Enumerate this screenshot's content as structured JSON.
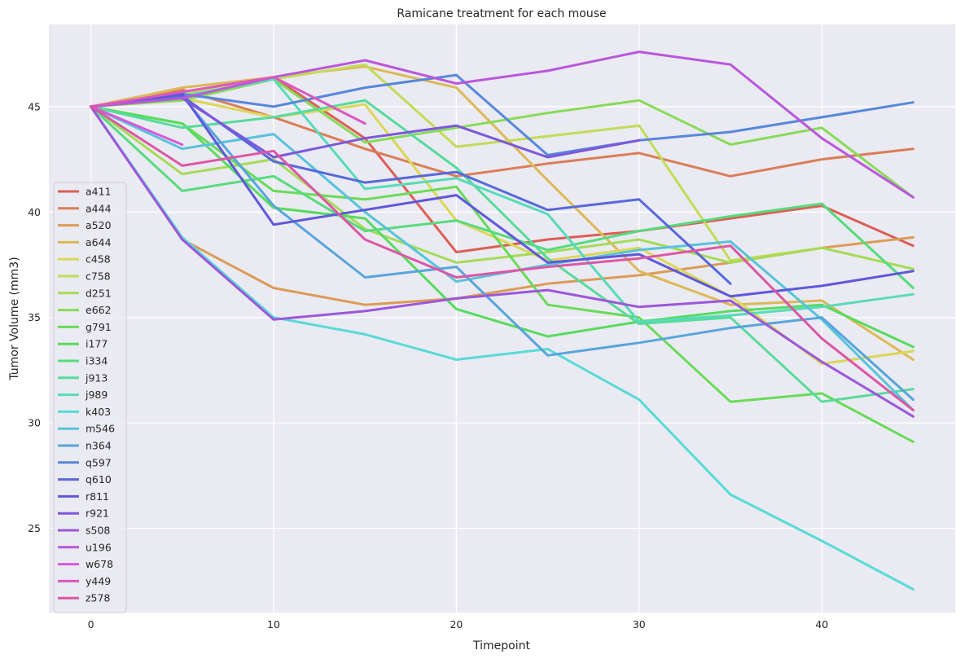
{
  "chart_data": {
    "type": "line",
    "title": "Ramicane treatment for each mouse",
    "xlabel": "Timepoint",
    "ylabel": "Tumor Volume (mm3)",
    "xlim": [
      -2.3,
      47.3
    ],
    "ylim": [
      21.0,
      48.9
    ],
    "xticks": [
      0,
      10,
      20,
      30,
      40
    ],
    "yticks": [
      25,
      30,
      35,
      40,
      45
    ],
    "grid": true,
    "legend_position": "center-left",
    "series": [
      {
        "name": "a411",
        "color": "#db5f57",
        "x": [
          0,
          5,
          10,
          15,
          20,
          25,
          30,
          35,
          40,
          45
        ],
        "y": [
          45.0,
          45.5,
          46.4,
          43.5,
          38.1,
          38.7,
          39.1,
          39.7,
          40.3,
          38.4
        ]
      },
      {
        "name": "a444",
        "color": "#db7d57",
        "x": [
          0,
          5,
          10,
          15,
          20,
          25,
          30,
          35,
          40,
          45
        ],
        "y": [
          45.0,
          45.8,
          44.5,
          43.0,
          41.7,
          42.3,
          42.8,
          41.7,
          42.5,
          43.0
        ]
      },
      {
        "name": "a520",
        "color": "#db9b57",
        "x": [
          0,
          5,
          10,
          15,
          20,
          25,
          30,
          35,
          40,
          45
        ],
        "y": [
          45.0,
          38.7,
          36.4,
          35.6,
          35.9,
          36.6,
          37.0,
          37.6,
          38.3,
          38.8
        ]
      },
      {
        "name": "a644",
        "color": "#dbb957",
        "x": [
          0,
          5,
          10,
          15,
          20,
          25,
          30,
          35,
          40,
          45
        ],
        "y": [
          45.0,
          45.9,
          46.4,
          46.9,
          45.9,
          41.5,
          37.2,
          35.6,
          35.8,
          33.0
        ]
      },
      {
        "name": "c458",
        "color": "#dbd757",
        "x": [
          0,
          5,
          10,
          15,
          20,
          25,
          30,
          35,
          40,
          45
        ],
        "y": [
          45.0,
          45.4,
          44.5,
          45.1,
          39.6,
          37.7,
          38.3,
          36.0,
          32.8,
          33.4
        ]
      },
      {
        "name": "c758",
        "color": "#c3db57",
        "x": [
          0,
          5,
          10,
          15,
          20,
          25,
          30,
          35,
          40,
          45
        ],
        "y": [
          45.0,
          45.6,
          46.3,
          47.0,
          43.1,
          43.6,
          44.1,
          37.7,
          38.3,
          37.3
        ]
      },
      {
        "name": "d251",
        "color": "#a5db57",
        "x": [
          0,
          5,
          10,
          15,
          20,
          25,
          30,
          35,
          40,
          45
        ],
        "y": [
          45.0,
          41.8,
          42.5,
          39.2,
          37.6,
          38.1,
          38.7,
          37.6,
          38.3,
          37.3
        ]
      },
      {
        "name": "e662",
        "color": "#87db57",
        "x": [
          0,
          5,
          10,
          15,
          20,
          25,
          30,
          35,
          40,
          45
        ],
        "y": [
          45.0,
          45.3,
          46.3,
          43.3,
          44.0,
          44.7,
          45.3,
          43.2,
          44.0,
          40.7
        ]
      },
      {
        "name": "g791",
        "color": "#69db57",
        "x": [
          0,
          5,
          10,
          15,
          20,
          25,
          30,
          35,
          40,
          45
        ],
        "y": [
          45.0,
          44.2,
          41.0,
          40.6,
          41.2,
          35.6,
          35.0,
          31.0,
          31.4,
          29.1
        ]
      },
      {
        "name": "i177",
        "color": "#57db5f",
        "x": [
          0,
          5,
          10,
          15,
          20,
          25,
          30,
          35,
          40,
          45
        ],
        "y": [
          45.0,
          44.2,
          40.2,
          39.7,
          35.4,
          34.1,
          34.8,
          35.3,
          35.6,
          33.6
        ]
      },
      {
        "name": "i334",
        "color": "#57db7d",
        "x": [
          0,
          5,
          10,
          15,
          20,
          25,
          30,
          35,
          40,
          45
        ],
        "y": [
          45.0,
          41.0,
          41.7,
          39.1,
          39.6,
          38.2,
          39.1,
          39.8,
          40.4,
          36.4
        ]
      },
      {
        "name": "j913",
        "color": "#57db9b",
        "x": [
          0,
          5,
          10,
          15,
          20,
          25,
          30,
          35,
          40,
          45
        ],
        "y": [
          45.0,
          44.0,
          44.5,
          45.3,
          42.1,
          37.8,
          34.7,
          35.0,
          31.0,
          31.6
        ]
      },
      {
        "name": "j989",
        "color": "#57dbb9",
        "x": [
          0,
          5,
          10,
          15,
          20,
          25,
          30,
          35,
          40,
          45
        ],
        "y": [
          45.0,
          45.5,
          46.3,
          41.1,
          41.6,
          39.9,
          34.8,
          35.1,
          35.5,
          36.1
        ]
      },
      {
        "name": "k403",
        "color": "#57dbd7",
        "x": [
          0,
          5,
          10,
          15,
          20,
          25,
          30,
          35,
          40,
          45
        ],
        "y": [
          45.0,
          38.8,
          35.0,
          34.2,
          33.0,
          33.5,
          31.1,
          26.6,
          24.4,
          22.1
        ]
      },
      {
        "name": "m546",
        "color": "#57c3db",
        "x": [
          0,
          5,
          10,
          15,
          20,
          25,
          30,
          35,
          40,
          45
        ],
        "y": [
          45.0,
          43.0,
          43.7,
          40.0,
          36.7,
          37.5,
          38.2,
          38.6,
          34.9,
          30.6
        ]
      },
      {
        "name": "n364",
        "color": "#57a5db",
        "x": [
          0,
          5,
          10,
          15,
          20,
          25,
          30,
          35,
          40,
          45
        ],
        "y": [
          45.0,
          45.5,
          40.3,
          36.9,
          37.4,
          33.2,
          33.8,
          34.5,
          35.0,
          31.1
        ]
      },
      {
        "name": "q597",
        "color": "#5787db",
        "x": [
          0,
          5,
          10,
          15,
          20,
          25,
          30,
          35,
          40,
          45
        ],
        "y": [
          45.0,
          45.6,
          45.0,
          45.9,
          46.5,
          42.7,
          43.4,
          43.8,
          44.5,
          45.2
        ]
      },
      {
        "name": "q610",
        "color": "#5769db",
        "x": [
          0,
          5,
          10,
          15,
          20,
          25,
          30,
          35
        ],
        "y": [
          45.0,
          45.5,
          42.4,
          41.4,
          41.9,
          40.1,
          40.6,
          36.6
        ]
      },
      {
        "name": "r811",
        "color": "#5f57db",
        "x": [
          0,
          5,
          10,
          15,
          20,
          25,
          30,
          35,
          40,
          45
        ],
        "y": [
          45.0,
          45.6,
          39.4,
          40.1,
          40.8,
          37.6,
          38.0,
          36.0,
          36.5,
          37.2
        ]
      },
      {
        "name": "r921",
        "color": "#7d57db",
        "x": [
          0,
          5,
          10,
          15,
          20,
          25,
          30
        ],
        "y": [
          45.0,
          45.4,
          42.6,
          43.5,
          44.1,
          42.6,
          43.4
        ]
      },
      {
        "name": "s508",
        "color": "#9b57db",
        "x": [
          0,
          5,
          10,
          15,
          20,
          25,
          30,
          35,
          40,
          45
        ],
        "y": [
          45.0,
          38.7,
          34.9,
          35.3,
          35.9,
          36.3,
          35.5,
          35.8,
          32.9,
          30.3
        ]
      },
      {
        "name": "u196",
        "color": "#b957db",
        "x": [
          0,
          5,
          10,
          15,
          20,
          25,
          30,
          35,
          40,
          45
        ],
        "y": [
          45.0,
          45.4,
          46.4,
          47.2,
          46.1,
          46.7,
          47.6,
          47.0,
          43.5,
          40.7
        ]
      },
      {
        "name": "w678",
        "color": "#d757db",
        "x": [
          0,
          5
        ],
        "y": [
          45.0,
          43.2
        ]
      },
      {
        "name": "y449",
        "color": "#db57c3",
        "x": [
          0,
          5,
          10,
          15
        ],
        "y": [
          45.0,
          45.7,
          46.4,
          44.2
        ]
      },
      {
        "name": "z578",
        "color": "#db57a5",
        "x": [
          0,
          5,
          10,
          15,
          20,
          25,
          30,
          35,
          40,
          45
        ],
        "y": [
          45.0,
          42.2,
          42.9,
          38.7,
          36.9,
          37.4,
          37.8,
          38.4,
          34.0,
          30.6
        ]
      }
    ]
  }
}
